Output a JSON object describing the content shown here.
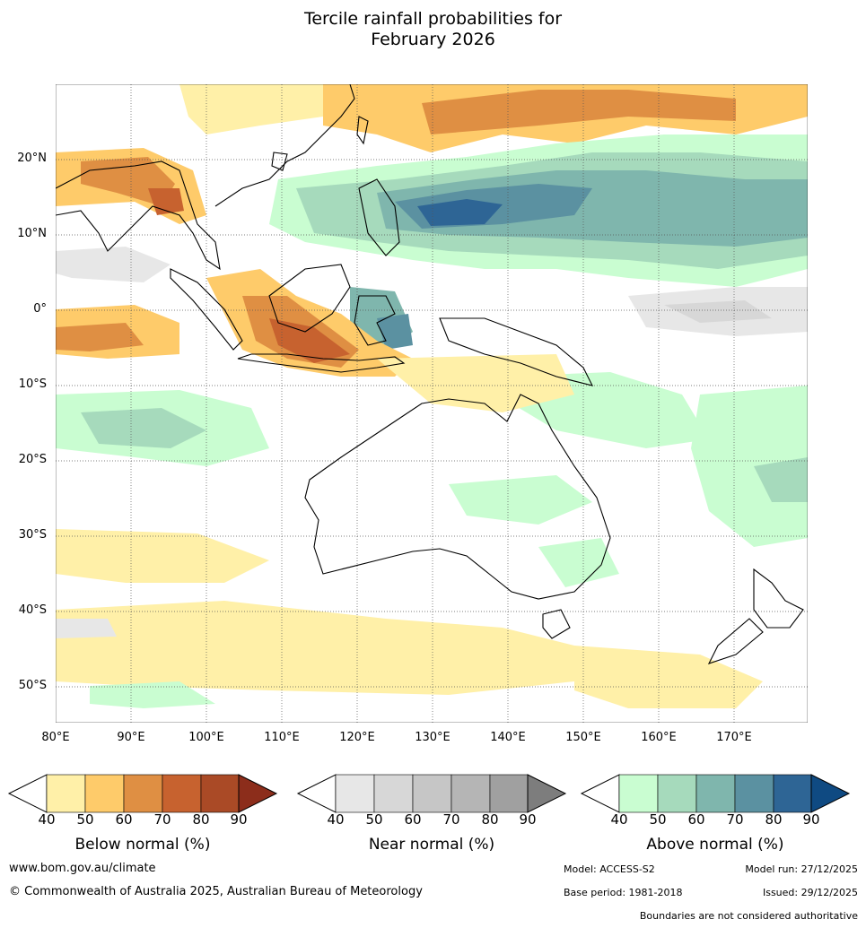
{
  "title_line1": "Tercile rainfall probabilities for",
  "title_line2": "February 2026",
  "lat_labels": [
    "20°N",
    "10°N",
    "0°",
    "10°S",
    "20°S",
    "30°S",
    "40°S",
    "50°S"
  ],
  "lon_labels": [
    "80°E",
    "90°E",
    "100°E",
    "110°E",
    "120°E",
    "130°E",
    "140°E",
    "150°E",
    "160°E",
    "170°E"
  ],
  "colorbars": {
    "below": {
      "title": "Below normal (%)",
      "colors": [
        "#ffffff",
        "#fff0a8",
        "#fecb6a",
        "#df8f43",
        "#c7622f",
        "#aa4a26",
        "#8c2d1b"
      ]
    },
    "near": {
      "title": "Near normal (%)",
      "colors": [
        "#ffffff",
        "#e7e7e7",
        "#d7d7d7",
        "#c6c6c6",
        "#b5b5b5",
        "#a0a0a0",
        "#7d7d7d"
      ]
    },
    "above": {
      "title": "Above normal (%)",
      "colors": [
        "#ffffff",
        "#c9fdd1",
        "#a6dabc",
        "#7fb6ad",
        "#5b91a1",
        "#2e6595",
        "#0f4a82"
      ]
    },
    "ticks": [
      "40",
      "50",
      "60",
      "70",
      "80",
      "90"
    ]
  },
  "footer": {
    "website": "www.bom.gov.au/climate",
    "copyright": "© Commonwealth of Australia 2025, Australian Bureau of Meteorology",
    "model": "Model: ACCESS-S2",
    "model_run": "Model run: 27/12/2025",
    "base_period": "Base period: 1981-2018",
    "issued": "Issued: 29/12/2025",
    "disclaimer": "Boundaries are not considered authoritative"
  }
}
